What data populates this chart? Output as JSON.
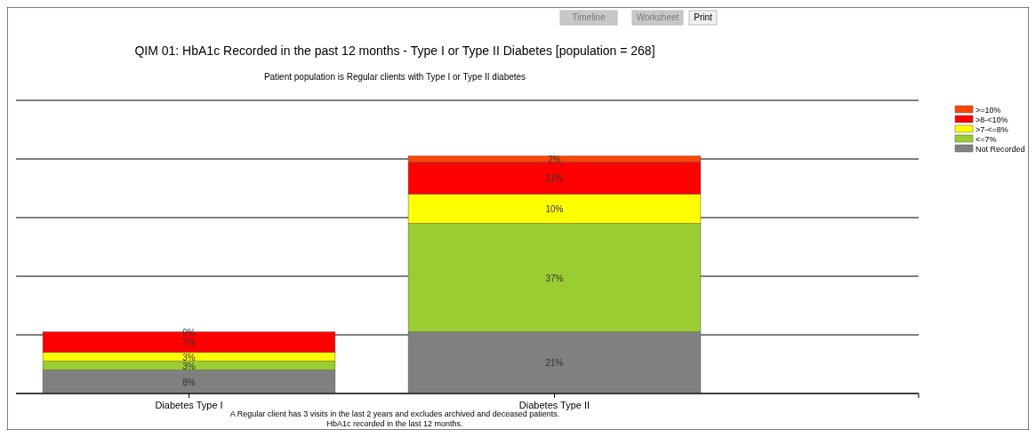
{
  "chart_data": {
    "type": "bar",
    "stacked": true,
    "title": "QIM 01: HbA1c Recorded in the past 12 months - Type I or Type II Diabetes [population = 268]",
    "subtitle": "Patient population is Regular clients with Type I or Type II diabetes",
    "categories": [
      "Diabetes Type I",
      "Diabetes Type II"
    ],
    "series": [
      {
        "name": "Not Recorded",
        "color": "#808080",
        "values": [
          8,
          21
        ],
        "value_labels": [
          "8%",
          "21%"
        ]
      },
      {
        "name": "<=7%",
        "color": "#9acd32",
        "values": [
          3,
          37
        ],
        "value_labels": [
          "3%",
          "37%"
        ]
      },
      {
        "name": ">7-<=8%",
        "color": "#ffff00",
        "values": [
          3,
          10
        ],
        "value_labels": [
          "3%",
          "10%"
        ]
      },
      {
        "name": ">8-<10%",
        "color": "#ff0000",
        "values": [
          7,
          11
        ],
        "value_labels": [
          "7%",
          "11%"
        ]
      },
      {
        "name": ">=10%",
        "color": "#ff4500",
        "values": [
          0,
          2
        ],
        "value_labels": [
          "0%",
          "2%"
        ]
      }
    ],
    "ylim": [
      0,
      100
    ],
    "yticks": [
      {
        "value": 0,
        "label": null
      },
      {
        "value": 20,
        "label": null
      },
      {
        "value": 40,
        "label": null
      },
      {
        "value": 60,
        "label": null
      },
      {
        "value": 80,
        "label": null
      },
      {
        "value": 100,
        "label": null
      }
    ],
    "tick_labels": "x",
    "grid": "y",
    "legend": "right",
    "annotations": [
      "Timeline",
      "Worksheet",
      "Print",
      "A Regular client has 3 visits in the last 2 years and excludes archived and deceased patients.",
      "HbA1c recorded in the last 12 months."
    ]
  }
}
